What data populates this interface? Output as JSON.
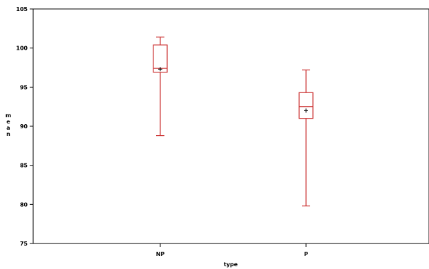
{
  "chart_data": {
    "type": "boxplot",
    "xlabel": "type",
    "ylabel": "mean",
    "ylim": [
      75,
      105
    ],
    "y_ticks": [
      "75",
      "80",
      "85",
      "90",
      "95",
      "100",
      "105"
    ],
    "categories": [
      "NP",
      "P"
    ],
    "boxes": [
      {
        "category": "NP",
        "min": 88.8,
        "q1": 96.9,
        "median": 97.4,
        "q3": 100.4,
        "max": 101.4,
        "mean": 97.3
      },
      {
        "category": "P",
        "min": 79.8,
        "q1": 91.0,
        "median": 92.5,
        "q3": 94.3,
        "max": 97.2,
        "mean": 92.0
      }
    ],
    "box_color": "#cc3333",
    "axis_color": "#000000",
    "grid": false
  }
}
